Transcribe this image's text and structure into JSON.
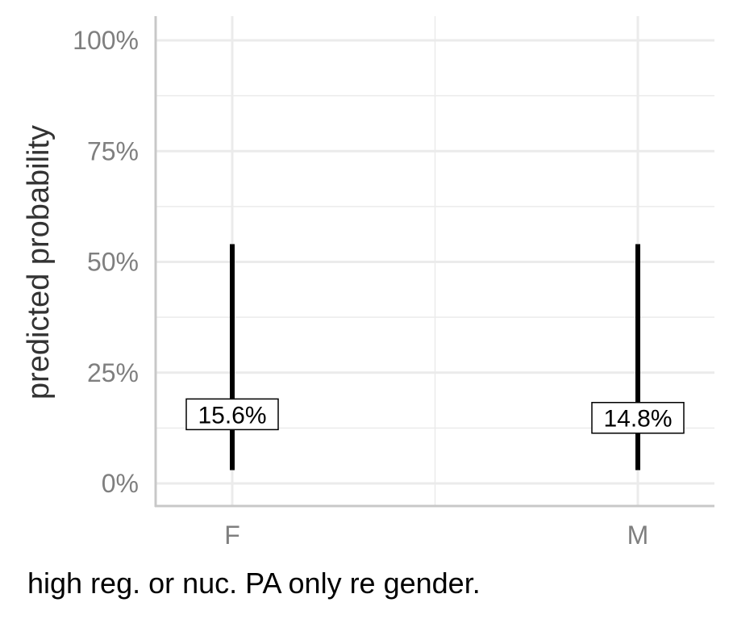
{
  "chart_data": {
    "type": "errorbar",
    "categories": [
      "F",
      "M"
    ],
    "values": [
      0.156,
      0.148
    ],
    "lower": [
      0.03,
      0.03
    ],
    "upper": [
      0.54,
      0.54
    ],
    "value_labels": [
      "15.6%",
      "14.8%"
    ],
    "ylabel": "predicted probability",
    "ylim": [
      0,
      1
    ],
    "yticks": [
      0,
      0.25,
      0.5,
      0.75,
      1
    ],
    "ytick_labels": [
      "0%",
      "25%",
      "50%",
      "75%",
      "100%"
    ],
    "grid": true,
    "colors": {
      "bar": "#000000",
      "grid": "#ebebeb",
      "axis": "#c8c8c8",
      "tick_text": "#7f7f7f"
    }
  },
  "caption": "high reg. or nuc. PA only re gender."
}
